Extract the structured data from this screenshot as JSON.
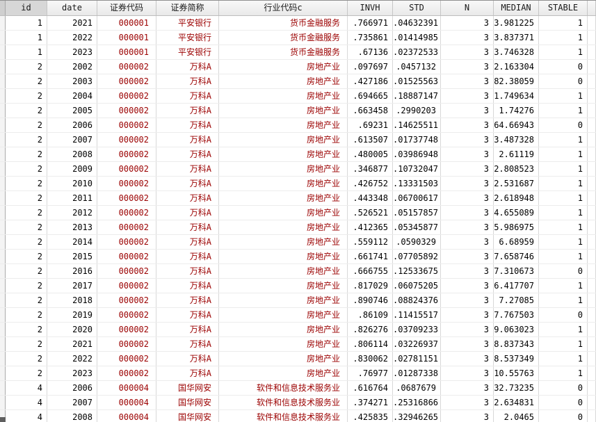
{
  "app": {
    "title": "Stata Data Browser grid"
  },
  "colors": {
    "string_text": "#9b0000",
    "numeric_text": "#000000",
    "selected_header_bg": "#d7d7d7",
    "header_bg_top": "#f8f8f8",
    "header_bg_bottom": "#e9e9e9",
    "grid_vertical_line": "#d8d8d8",
    "grid_horizontal_line": "#ececec"
  },
  "table": {
    "left_margin_width": 8,
    "selected_column": "id",
    "columns": [
      {
        "key": "id",
        "label": "id",
        "width": 60,
        "type": "numeric"
      },
      {
        "key": "date",
        "label": "date",
        "width": 72,
        "type": "numeric"
      },
      {
        "key": "sec_code",
        "label": "证券代码",
        "width": 85,
        "type": "string"
      },
      {
        "key": "sec_name",
        "label": "证券简称",
        "width": 90,
        "type": "string"
      },
      {
        "key": "industry_code",
        "label": "行业代码c",
        "width": 185,
        "type": "string"
      },
      {
        "key": "invh",
        "label": "INVH",
        "width": 65,
        "type": "numeric"
      },
      {
        "key": "std",
        "label": "STD",
        "width": 69,
        "type": "numeric"
      },
      {
        "key": "n",
        "label": "N",
        "width": 76,
        "type": "numeric"
      },
      {
        "key": "median",
        "label": "MEDIAN",
        "width": 65,
        "type": "numeric"
      },
      {
        "key": "stable",
        "label": "STABLE",
        "width": 70,
        "type": "numeric"
      }
    ],
    "rows": [
      [
        "1",
        "2021",
        "000001",
        "平安银行",
        "货币金融服务",
        ".766971",
        ".04632391",
        "3",
        "3.981225",
        "1"
      ],
      [
        "1",
        "2022",
        "000001",
        "平安银行",
        "货币金融服务",
        ".735861",
        ".01414985",
        "3",
        "3.837371",
        "1"
      ],
      [
        "1",
        "2023",
        "000001",
        "平安银行",
        "货币金融服务",
        ".67136",
        ".02372533",
        "3",
        "3.746328",
        "1"
      ],
      [
        "2",
        "2002",
        "000002",
        "万科A",
        "房地产业",
        ".097697",
        ".0457132",
        "3",
        "2.163304",
        "0"
      ],
      [
        "2",
        "2003",
        "000002",
        "万科A",
        "房地产业",
        ".427186",
        ".01525563",
        "3",
        "82.38059",
        "0"
      ],
      [
        "2",
        "2004",
        "000002",
        "万科A",
        "房地产业",
        ".694665",
        ".18887147",
        "3",
        "1.749634",
        "1"
      ],
      [
        "2",
        "2005",
        "000002",
        "万科A",
        "房地产业",
        ".663458",
        ".2990203",
        "3",
        "1.74276",
        "1"
      ],
      [
        "2",
        "2006",
        "000002",
        "万科A",
        "房地产业",
        ".69231",
        ".14625511",
        "3",
        "64.66943",
        "0"
      ],
      [
        "2",
        "2007",
        "000002",
        "万科A",
        "房地产业",
        ".613507",
        ".01737748",
        "3",
        "3.487328",
        "1"
      ],
      [
        "2",
        "2008",
        "000002",
        "万科A",
        "房地产业",
        ".480005",
        ".03986948",
        "3",
        "2.61119",
        "1"
      ],
      [
        "2",
        "2009",
        "000002",
        "万科A",
        "房地产业",
        ".346877",
        ".10732047",
        "3",
        "2.808523",
        "1"
      ],
      [
        "2",
        "2010",
        "000002",
        "万科A",
        "房地产业",
        ".426752",
        ".13331503",
        "3",
        "2.531687",
        "1"
      ],
      [
        "2",
        "2011",
        "000002",
        "万科A",
        "房地产业",
        ".443348",
        ".06700617",
        "3",
        "2.618948",
        "1"
      ],
      [
        "2",
        "2012",
        "000002",
        "万科A",
        "房地产业",
        ".526521",
        ".05157857",
        "3",
        "4.655089",
        "1"
      ],
      [
        "2",
        "2013",
        "000002",
        "万科A",
        "房地产业",
        ".412365",
        ".05345877",
        "3",
        "5.986975",
        "1"
      ],
      [
        "2",
        "2014",
        "000002",
        "万科A",
        "房地产业",
        ".559112",
        ".0590329",
        "3",
        "6.68959",
        "1"
      ],
      [
        "2",
        "2015",
        "000002",
        "万科A",
        "房地产业",
        ".661741",
        ".07705892",
        "3",
        "7.658746",
        "1"
      ],
      [
        "2",
        "2016",
        "000002",
        "万科A",
        "房地产业",
        ".666755",
        ".12533675",
        "3",
        "7.310673",
        "0"
      ],
      [
        "2",
        "2017",
        "000002",
        "万科A",
        "房地产业",
        ".817029",
        ".06075205",
        "3",
        "6.417707",
        "1"
      ],
      [
        "2",
        "2018",
        "000002",
        "万科A",
        "房地产业",
        ".890746",
        ".08824376",
        "3",
        "7.27085",
        "1"
      ],
      [
        "2",
        "2019",
        "000002",
        "万科A",
        "房地产业",
        ".86109",
        ".11415517",
        "3",
        "7.767503",
        "0"
      ],
      [
        "2",
        "2020",
        "000002",
        "万科A",
        "房地产业",
        ".826276",
        ".03709233",
        "3",
        "9.063023",
        "1"
      ],
      [
        "2",
        "2021",
        "000002",
        "万科A",
        "房地产业",
        ".806114",
        ".03226937",
        "3",
        "8.837343",
        "1"
      ],
      [
        "2",
        "2022",
        "000002",
        "万科A",
        "房地产业",
        ".830062",
        ".02781151",
        "3",
        "8.537349",
        "1"
      ],
      [
        "2",
        "2023",
        "000002",
        "万科A",
        "房地产业",
        ".76977",
        ".01287338",
        "3",
        "10.55763",
        "1"
      ],
      [
        "4",
        "2006",
        "000004",
        "国华网安",
        "软件和信息技术服务业",
        ".616764",
        ".0687679",
        "3",
        "32.73235",
        "0"
      ],
      [
        "4",
        "2007",
        "000004",
        "国华网安",
        "软件和信息技术服务业",
        ".374271",
        ".25316866",
        "3",
        "2.634831",
        "0"
      ],
      [
        "4",
        "2008",
        "000004",
        "国华网安",
        "软件和信息技术服务业",
        ".425835",
        ".32946265",
        "3",
        "2.0465",
        "0"
      ]
    ]
  }
}
